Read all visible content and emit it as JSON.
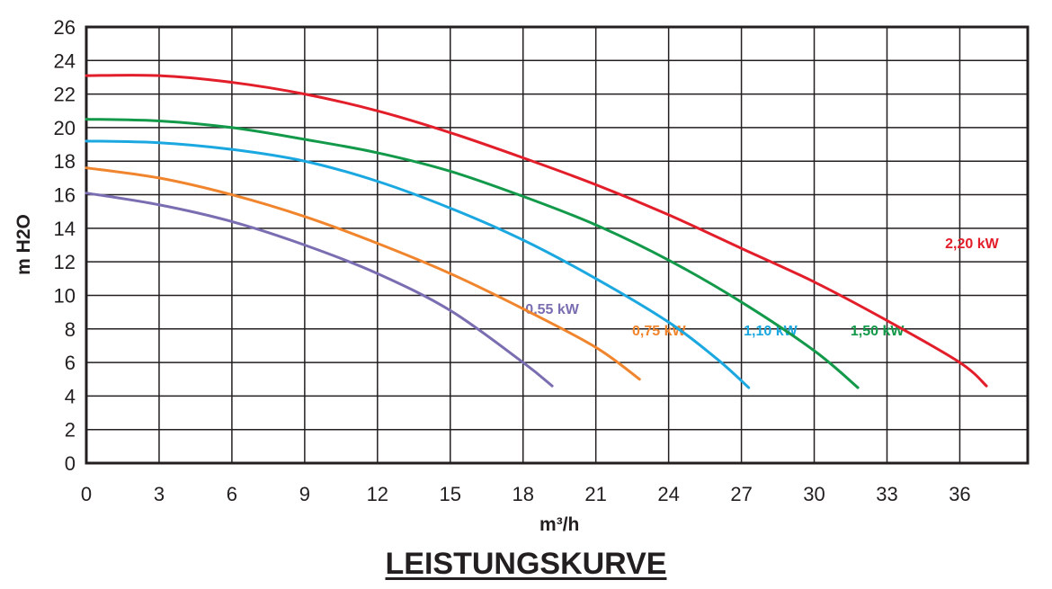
{
  "chart_data": {
    "type": "line",
    "title": "LEISTUNGSKURVE",
    "xlabel": "m³/h",
    "ylabel": "m H2O",
    "xlim": [
      0,
      38.8
    ],
    "ylim": [
      0,
      26
    ],
    "xticks": [
      0,
      3,
      6,
      9,
      12,
      15,
      18,
      21,
      24,
      27,
      30,
      33,
      36
    ],
    "yticks": [
      0,
      2,
      4,
      6,
      8,
      10,
      12,
      14,
      16,
      18,
      20,
      22,
      24,
      26
    ],
    "grid": true,
    "series": [
      {
        "name": "0,55 kW",
        "color": "#7b6db1",
        "x": [
          0,
          3,
          6,
          9,
          12,
          15,
          18,
          19.2
        ],
        "y": [
          16.1,
          15.4,
          14.4,
          13.0,
          11.3,
          9.1,
          6.0,
          4.6
        ]
      },
      {
        "name": "0,75 kW",
        "color": "#f0852d",
        "x": [
          0,
          3,
          6,
          9,
          12,
          15,
          18,
          21,
          22.8
        ],
        "y": [
          17.6,
          17.0,
          16.0,
          14.7,
          13.1,
          11.3,
          9.2,
          6.9,
          5.0
        ]
      },
      {
        "name": "1,10 kW",
        "color": "#1ba8e0",
        "x": [
          0,
          3,
          6,
          9,
          12,
          15,
          18,
          21,
          24,
          26,
          27.3
        ],
        "y": [
          19.2,
          19.1,
          18.7,
          18.0,
          16.8,
          15.2,
          13.3,
          11.0,
          8.4,
          6.2,
          4.5
        ]
      },
      {
        "name": "1,50 kW",
        "color": "#13994a",
        "x": [
          0,
          3,
          6,
          9,
          12,
          15,
          18,
          21,
          24,
          27,
          30,
          31.8
        ],
        "y": [
          20.5,
          20.4,
          20.0,
          19.3,
          18.5,
          17.4,
          15.9,
          14.2,
          12.1,
          9.6,
          6.7,
          4.5
        ]
      },
      {
        "name": "2,20 kW",
        "color": "#e31e2b",
        "x": [
          0,
          3,
          6,
          9,
          12,
          15,
          18,
          21,
          24,
          27,
          30,
          33,
          36,
          37.1
        ],
        "y": [
          23.1,
          23.1,
          22.7,
          22.0,
          21.0,
          19.7,
          18.2,
          16.6,
          14.8,
          12.8,
          10.8,
          8.5,
          6.0,
          4.6
        ]
      }
    ]
  }
}
